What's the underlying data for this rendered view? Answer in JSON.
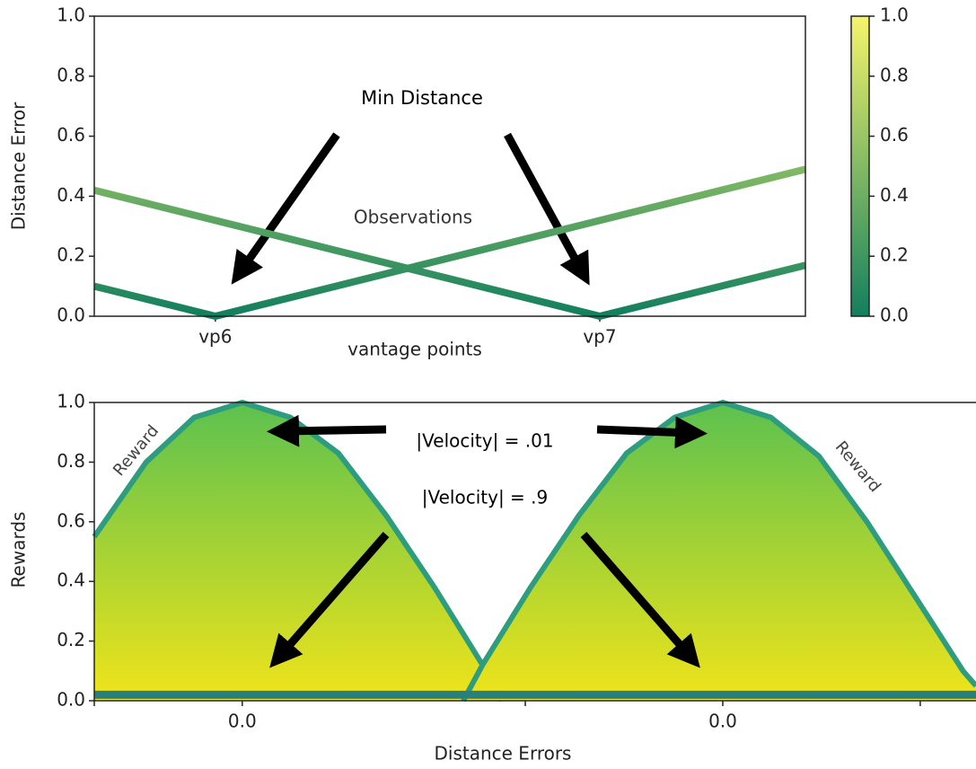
{
  "chart_data": [
    {
      "type": "line",
      "ylabel": "Distance Error",
      "xlabel": "vantage points",
      "xlim": [
        0.685,
        2.535
      ],
      "xticks": [
        {
          "value": 1,
          "label": "vp6"
        },
        {
          "value": 2,
          "label": "vp7"
        }
      ],
      "ylim": [
        0,
        1
      ],
      "yticks": [
        {
          "value": 0,
          "label": "0.0"
        },
        {
          "value": 0.2,
          "label": "0.2"
        },
        {
          "value": 0.4,
          "label": "0.4"
        },
        {
          "value": 0.6,
          "label": "0.6"
        },
        {
          "value": 0.8,
          "label": "0.8"
        },
        {
          "value": 1,
          "label": "1.0"
        }
      ],
      "colormap": [
        "#127f5e",
        "#f5f56b"
      ],
      "series": [
        {
          "x": [
            0.685,
            2,
            2.535
          ],
          "values": [
            0.42,
            0,
            0.17
          ]
        },
        {
          "x": [
            0.685,
            1,
            2.535
          ],
          "values": [
            0.1,
            0,
            0.49
          ]
        }
      ],
      "colorbar": {
        "ylim": [
          0,
          1
        ],
        "yticks": [
          {
            "value": 0,
            "label": "0.0"
          },
          {
            "value": 0.2,
            "label": "0.2"
          },
          {
            "value": 0.4,
            "label": "0.4"
          },
          {
            "value": 0.6,
            "label": "0.6"
          },
          {
            "value": 0.8,
            "label": "0.8"
          },
          {
            "value": 1,
            "label": "1.0"
          }
        ]
      },
      "annotations": [
        "Min Distance",
        "Observations"
      ]
    },
    {
      "type": "area",
      "ylabel": "Rewards",
      "xlabel": "Distance Errors",
      "xlim": [
        -0.308,
        1.527
      ],
      "xticks": [
        {
          "value": 0,
          "label": "0.0"
        },
        {
          "value": 1,
          "label": "0.0"
        }
      ],
      "minor_xticks": [
        -0.308,
        0.589,
        1.411
      ],
      "ylim": [
        0,
        1
      ],
      "yticks": [
        {
          "value": 0,
          "label": "0.0"
        },
        {
          "value": 0.2,
          "label": "0.2"
        },
        {
          "value": 0.4,
          "label": "0.4"
        },
        {
          "value": 0.6,
          "label": "0.6"
        },
        {
          "value": 0.8,
          "label": "0.8"
        },
        {
          "value": 1,
          "label": "1.0"
        }
      ],
      "fill_colors": [
        "#f0e41a",
        "#5cc14f"
      ],
      "line_color": "#2e9c7e",
      "series": [
        {
          "x": [
            -0.308,
            -0.2,
            -0.1,
            0,
            0.1,
            0.2,
            0.3,
            0.4,
            0.5,
            0.54
          ],
          "values": [
            0.55,
            0.8,
            0.95,
            1.0,
            0.95,
            0.83,
            0.62,
            0.38,
            0.12,
            0
          ]
        },
        {
          "x": [
            0.46,
            0.5,
            0.6,
            0.7,
            0.8,
            0.9,
            1,
            1.1,
            1.2,
            1.3,
            1.4,
            1.5,
            1.527
          ],
          "values": [
            0,
            0.12,
            0.38,
            0.62,
            0.83,
            0.95,
            1.0,
            0.95,
            0.82,
            0.6,
            0.35,
            0.1,
            0.05
          ]
        }
      ],
      "baseline": {
        "x": [
          -0.308,
          1.527
        ],
        "values": [
          0.02,
          0.02
        ],
        "color": "#2b7f7a"
      },
      "annotations": [
        "Reward",
        "Reward",
        "|Velocity| = .01",
        "|Velocity| = .9"
      ]
    }
  ]
}
